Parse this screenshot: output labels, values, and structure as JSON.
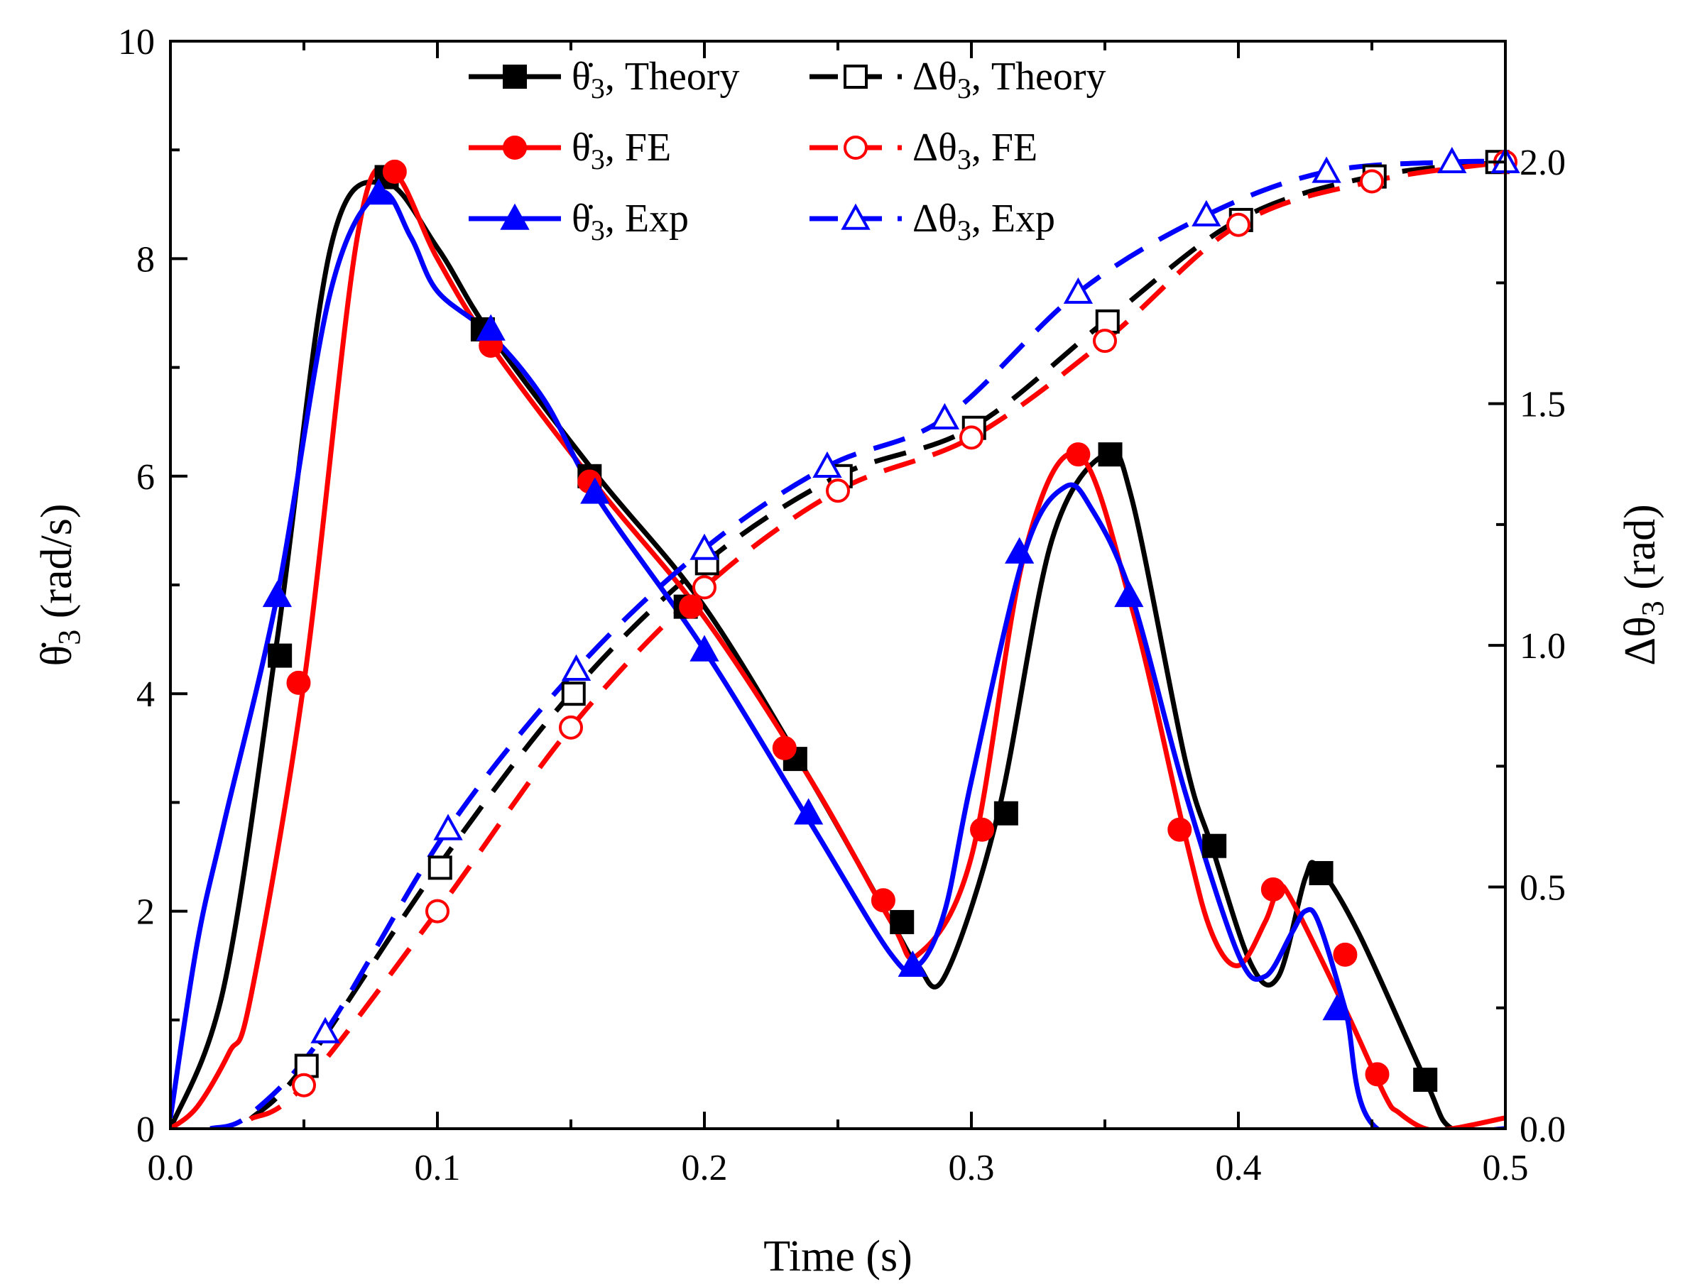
{
  "chart_data": {
    "type": "line",
    "xlabel": "Time (s)",
    "ylabel_left": "θ̇3 (rad/s)",
    "ylabel_right": "Δθ3 (rad)",
    "xlim": [
      0,
      0.5
    ],
    "ylim_left": [
      0,
      10
    ],
    "ylim_right": [
      0,
      2.25
    ],
    "x_ticks": [
      "0.0",
      "0.1",
      "0.2",
      "0.3",
      "0.4",
      "0.5"
    ],
    "y_left_ticks": [
      "0",
      "2",
      "4",
      "6",
      "8",
      "10"
    ],
    "y_right_ticks": [
      "0.0",
      "0.5",
      "1.0",
      "1.5",
      "2.0"
    ],
    "grid": false,
    "legend_position": "top-center",
    "series": [
      {
        "name": "θ̇3, Theory",
        "legend_main": "θ̇",
        "legend_sub": "3",
        "legend_rest": ", Theory",
        "axis": "left",
        "color": "#000000",
        "dash": "solid",
        "marker": "square",
        "filled": true,
        "x": [
          0,
          0.02,
          0.04,
          0.06,
          0.08,
          0.1,
          0.12,
          0.16,
          0.2,
          0.24,
          0.27,
          0.28,
          0.29,
          0.31,
          0.33,
          0.35,
          0.36,
          0.38,
          0.39,
          0.405,
          0.415,
          0.425,
          0.43,
          0.445,
          0.47,
          0.48,
          0.5
        ],
        "y": [
          0,
          1.3,
          4.5,
          8.1,
          8.7,
          8.1,
          7.3,
          6.0,
          4.8,
          3.2,
          1.9,
          1.5,
          1.4,
          2.9,
          5.4,
          6.2,
          5.8,
          3.4,
          2.6,
          1.5,
          1.4,
          2.3,
          2.4,
          1.8,
          0.45,
          0,
          0
        ],
        "marker_x": [
          0.041,
          0.081,
          0.117,
          0.157,
          0.193,
          0.234,
          0.274,
          0.313,
          0.352,
          0.391,
          0.431,
          0.47
        ],
        "marker_y": [
          4.35,
          8.75,
          7.35,
          6.0,
          4.8,
          3.4,
          1.9,
          2.9,
          6.2,
          2.6,
          2.35,
          0.45
        ]
      },
      {
        "name": "Δθ3, Theory",
        "legend_main": "Δθ",
        "legend_sub": "3",
        "legend_rest": ", Theory",
        "axis": "right",
        "color": "#000000",
        "dash": "dashed",
        "marker": "square",
        "filled": false,
        "x": [
          0.03,
          0.05,
          0.1,
          0.15,
          0.2,
          0.25,
          0.3,
          0.35,
          0.4,
          0.45,
          0.5
        ],
        "y": [
          0.02,
          0.13,
          0.54,
          0.9,
          1.17,
          1.35,
          1.45,
          1.67,
          1.88,
          1.97,
          2.0
        ],
        "marker_x": [
          0.051,
          0.101,
          0.151,
          0.201,
          0.251,
          0.301,
          0.351,
          0.401,
          0.451,
          0.497
        ],
        "marker_y": [
          0.13,
          0.54,
          0.9,
          1.17,
          1.35,
          1.45,
          1.67,
          1.88,
          1.97,
          2.0
        ]
      },
      {
        "name": "θ̇3, FE",
        "legend_main": "θ̇",
        "legend_sub": "3",
        "legend_rest": ", FE",
        "axis": "left",
        "color": "#ff0000",
        "dash": "solid",
        "marker": "circle",
        "filled": true,
        "x": [
          0,
          0.01,
          0.022,
          0.03,
          0.05,
          0.07,
          0.083,
          0.1,
          0.12,
          0.16,
          0.2,
          0.24,
          0.27,
          0.28,
          0.3,
          0.32,
          0.34,
          0.36,
          0.38,
          0.39,
          0.4,
          0.41,
          0.415,
          0.42,
          0.44,
          0.455,
          0.46,
          0.47,
          0.48,
          0.5
        ],
        "y": [
          0,
          0.2,
          0.7,
          1.2,
          4.1,
          8.2,
          8.8,
          8.0,
          7.2,
          5.9,
          4.7,
          3.2,
          1.9,
          1.6,
          2.5,
          5.3,
          6.2,
          4.8,
          2.7,
          1.8,
          1.5,
          1.9,
          2.2,
          2.1,
          1.1,
          0.3,
          0.15,
          0,
          0,
          0.1
        ],
        "marker_x": [
          0.048,
          0.084,
          0.12,
          0.157,
          0.195,
          0.23,
          0.267,
          0.304,
          0.34,
          0.378,
          0.413,
          0.44,
          0.452
        ],
        "marker_y": [
          4.1,
          8.8,
          7.2,
          5.95,
          4.8,
          3.5,
          2.1,
          2.75,
          6.2,
          2.75,
          2.2,
          1.6,
          0.5
        ]
      },
      {
        "name": "Δθ3, FE",
        "legend_main": "Δθ",
        "legend_sub": "3",
        "legend_rest": ", FE",
        "axis": "right",
        "color": "#ff0000",
        "dash": "dashed",
        "marker": "circle",
        "filled": false,
        "x": [
          0.03,
          0.05,
          0.1,
          0.15,
          0.2,
          0.25,
          0.3,
          0.35,
          0.4,
          0.45,
          0.5
        ],
        "y": [
          0.02,
          0.09,
          0.45,
          0.83,
          1.12,
          1.32,
          1.43,
          1.63,
          1.87,
          1.96,
          2.0
        ],
        "marker_x": [
          0.05,
          0.1,
          0.15,
          0.2,
          0.25,
          0.3,
          0.35,
          0.4,
          0.45,
          0.5
        ],
        "marker_y": [
          0.09,
          0.45,
          0.83,
          1.12,
          1.32,
          1.43,
          1.63,
          1.87,
          1.96,
          2.0
        ]
      },
      {
        "name": "θ̇3, Exp",
        "legend_main": "θ̇",
        "legend_sub": "3",
        "legend_rest": ", Exp",
        "axis": "left",
        "color": "#0000ff",
        "dash": "solid",
        "marker": "triangle",
        "filled": true,
        "x": [
          0,
          0.01,
          0.02,
          0.04,
          0.06,
          0.078,
          0.09,
          0.1,
          0.12,
          0.14,
          0.16,
          0.2,
          0.24,
          0.27,
          0.28,
          0.29,
          0.3,
          0.32,
          0.335,
          0.345,
          0.36,
          0.38,
          0.4,
          0.41,
          0.42,
          0.425,
          0.43,
          0.44,
          0.452,
          0.5
        ],
        "y": [
          0.1,
          1.7,
          2.8,
          4.9,
          7.7,
          8.6,
          8.2,
          7.7,
          7.3,
          6.7,
          5.8,
          4.4,
          2.8,
          1.6,
          1.5,
          2.0,
          3.2,
          5.3,
          5.9,
          5.7,
          4.9,
          3.1,
          1.6,
          1.4,
          1.8,
          2.0,
          1.9,
          1.1,
          0,
          0
        ],
        "marker_x": [
          0.04,
          0.078,
          0.12,
          0.159,
          0.2,
          0.239,
          0.278,
          0.318,
          0.359,
          0.437
        ],
        "marker_y": [
          4.9,
          8.6,
          7.35,
          5.85,
          4.4,
          2.9,
          1.5,
          5.3,
          4.9,
          1.1
        ]
      },
      {
        "name": "Δθ3, Exp",
        "legend_main": "Δθ",
        "legend_sub": "3",
        "legend_rest": ", Exp",
        "axis": "right",
        "color": "#0000ff",
        "dash": "dashed",
        "marker": "triangle",
        "filled": false,
        "x": [
          0.015,
          0.03,
          0.058,
          0.104,
          0.152,
          0.2,
          0.246,
          0.29,
          0.34,
          0.388,
          0.433,
          0.48,
          0.5
        ],
        "y": [
          0.0,
          0.03,
          0.2,
          0.62,
          0.95,
          1.2,
          1.37,
          1.47,
          1.73,
          1.89,
          1.98,
          2.0,
          2.0
        ],
        "marker_x": [
          0.058,
          0.104,
          0.152,
          0.2,
          0.246,
          0.29,
          0.34,
          0.388,
          0.433,
          0.48,
          0.5
        ],
        "marker_y": [
          0.2,
          0.62,
          0.95,
          1.2,
          1.37,
          1.47,
          1.73,
          1.89,
          1.98,
          2.0,
          2.0
        ]
      }
    ]
  }
}
